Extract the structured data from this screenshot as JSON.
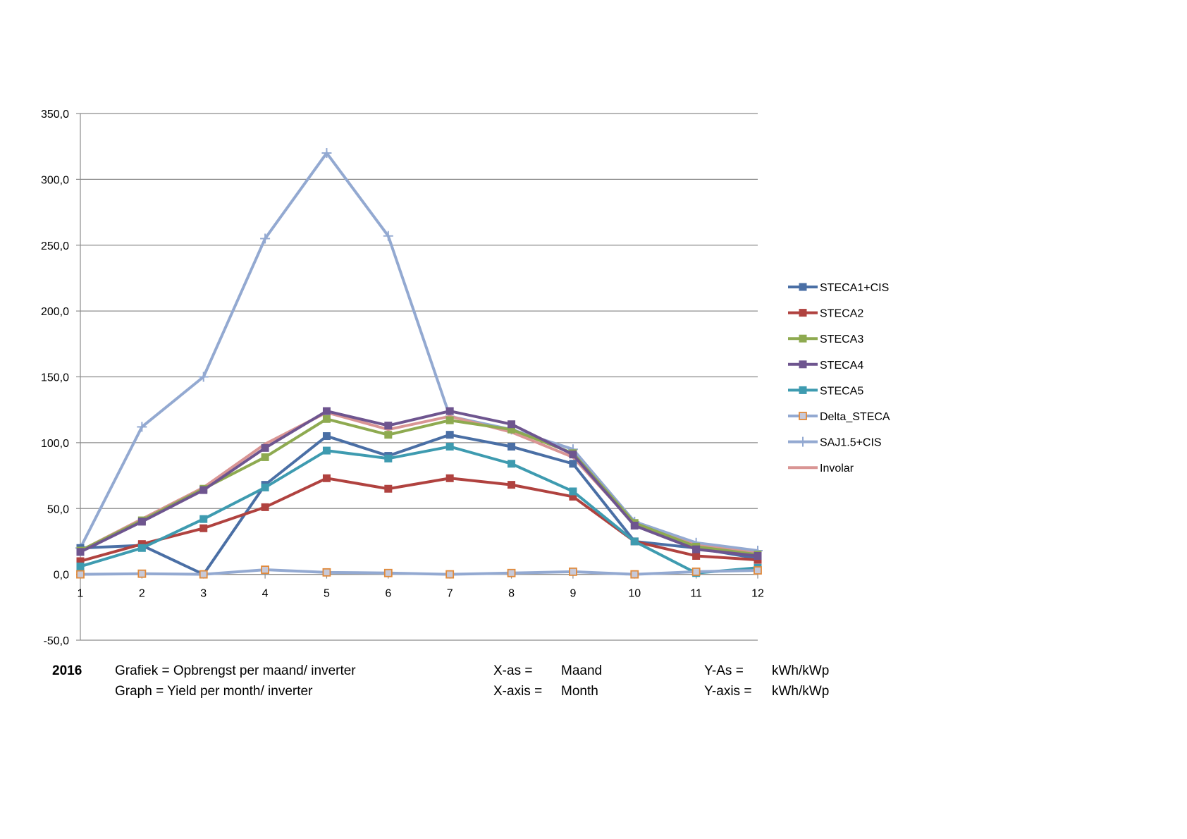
{
  "chart_data": {
    "type": "line",
    "x": [
      1,
      2,
      3,
      4,
      5,
      6,
      7,
      8,
      9,
      10,
      11,
      12
    ],
    "ylim": [
      -50,
      350
    ],
    "yticks": [
      -50,
      0,
      50,
      100,
      150,
      200,
      250,
      300,
      350
    ],
    "ytick_labels": [
      "-50,0",
      "0,0",
      "50,0",
      "100,0",
      "150,0",
      "200,0",
      "250,0",
      "300,0",
      "350,0"
    ],
    "xtick_labels": [
      "1",
      "2",
      "3",
      "4",
      "5",
      "6",
      "7",
      "8",
      "9",
      "10",
      "11",
      "12"
    ],
    "grid": "horizontal",
    "legend_position": "right",
    "series": [
      {
        "name": "STECA1+CIS",
        "color": "#4A6FA5",
        "marker": "square",
        "values": [
          20,
          22,
          0,
          68,
          105,
          90,
          106,
          97,
          84,
          25,
          20,
          12
        ]
      },
      {
        "name": "STECA2",
        "color": "#B0423F",
        "marker": "square",
        "values": [
          10,
          23,
          35,
          51,
          73,
          65,
          73,
          68,
          59,
          25,
          14,
          11
        ]
      },
      {
        "name": "STECA3",
        "color": "#8EAA50",
        "marker": "square",
        "values": [
          18,
          41,
          65,
          89,
          118,
          106,
          117,
          110,
          92,
          39,
          21,
          15
        ]
      },
      {
        "name": "STECA4",
        "color": "#6E558F",
        "marker": "square",
        "values": [
          17,
          40,
          64,
          96,
          124,
          113,
          124,
          114,
          91,
          37,
          19,
          14
        ]
      },
      {
        "name": "STECA5",
        "color": "#3E9BB0",
        "marker": "square",
        "values": [
          6,
          20,
          42,
          66,
          94,
          88,
          97,
          84,
          63,
          25,
          1,
          5
        ]
      },
      {
        "name": "Delta_STECA",
        "color": "#93A9D1",
        "marker": "square-orange",
        "values": [
          0,
          0.5,
          0,
          3.5,
          1.5,
          1,
          0,
          1,
          2,
          0,
          2,
          3
        ]
      },
      {
        "name": "SAJ1.5+CIS",
        "color": "#93A9D1",
        "marker": "plus",
        "values": [
          20,
          112,
          150,
          255,
          320,
          257,
          120,
          110,
          95,
          40,
          24,
          18
        ]
      },
      {
        "name": "Involar",
        "color": "#D99594",
        "marker": "none",
        "values": [
          18,
          42,
          66,
          99,
          123,
          110,
          120,
          108,
          89,
          38,
          22,
          16
        ]
      }
    ]
  },
  "caption": {
    "year": "2016",
    "graph_nl": "Grafiek = Opbrengst per maand/ inverter",
    "graph_en": "Graph = Yield per month/ inverter",
    "xaxis_nl": "X-as =",
    "xaxis_en": "X-axis =",
    "xval_nl": "Maand",
    "xval_en": "Month",
    "yaxis_nl": "Y-As =",
    "yaxis_en": "Y-axis =",
    "yval_nl": "kWh/kWp",
    "yval_en": "kWh/kWp"
  }
}
